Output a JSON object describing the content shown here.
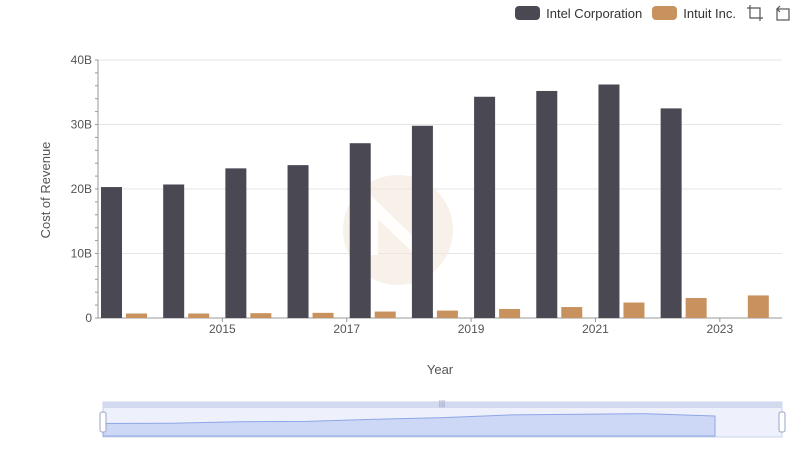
{
  "legend": [
    {
      "name": "Intel Corporation",
      "color": "#4a4953"
    },
    {
      "name": "Intuit Inc.",
      "color": "#c8925e"
    }
  ],
  "toolbar": {
    "zoom_icon": "zoom-select-icon",
    "reset_icon": "restore-icon"
  },
  "chart_data": {
    "type": "bar",
    "xlabel": "Year",
    "ylabel": "Cost of Revenue",
    "ylim": [
      0,
      40000000000
    ],
    "yticks": [
      "0",
      "10B",
      "20B",
      "30B",
      "40B"
    ],
    "xticks": [
      "2015",
      "2017",
      "2019",
      "2021",
      "2023"
    ],
    "categories": [
      "2014",
      "2015",
      "2016",
      "2017",
      "2018",
      "2019",
      "2020",
      "2021",
      "2022",
      "2023",
      "2024"
    ],
    "series": [
      {
        "name": "Intel Corporation",
        "color": "#4a4953",
        "values": [
          20300000000,
          20700000000,
          23200000000,
          23700000000,
          27100000000,
          29800000000,
          34300000000,
          35200000000,
          36200000000,
          32500000000,
          null
        ]
      },
      {
        "name": "Intuit Inc.",
        "color": "#c8925e",
        "values": [
          700000000,
          700000000,
          750000000,
          800000000,
          1000000000,
          1150000000,
          1400000000,
          1700000000,
          2400000000,
          3100000000,
          3500000000
        ]
      }
    ],
    "grid": true,
    "legend_position": "top-right",
    "has_zoom_slider": true
  }
}
